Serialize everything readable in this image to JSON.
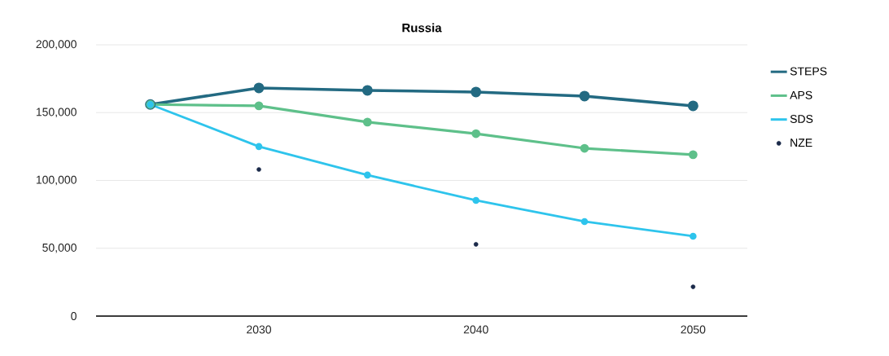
{
  "chart_data": {
    "type": "line",
    "title": "Russia",
    "x": [
      2025,
      2030,
      2035,
      2040,
      2045,
      2050
    ],
    "series": [
      {
        "name": "STEPS",
        "color": "#236a82",
        "values": [
          156000,
          168200,
          166400,
          165200,
          162200,
          155000
        ]
      },
      {
        "name": "APS",
        "color": "#5ec08a",
        "values": [
          156000,
          155000,
          143000,
          134500,
          123700,
          119000
        ]
      },
      {
        "name": "SDS",
        "color": "#2ec4ec",
        "values": [
          156000,
          125000,
          104000,
          85300,
          69700,
          58900
        ]
      },
      {
        "name": "NZE",
        "color": "#1b2a4a",
        "type": "scatter",
        "values": [
          null,
          108100,
          null,
          52900,
          null,
          21600
        ]
      }
    ],
    "xlim": [
      2022.5,
      2052.5
    ],
    "xticks": [
      2030,
      2040,
      2050
    ],
    "ylim": [
      0,
      200000
    ],
    "yticks": [
      0,
      {
        "value": 50000,
        "label": "50,000"
      },
      {
        "value": 100000,
        "label": "100,000"
      },
      {
        "value": 150000,
        "label": "150,000"
      },
      {
        "value": 200000,
        "label": "200,000"
      }
    ],
    "grid": "y",
    "legend": "right",
    "marker": "circle",
    "line_style": "solid"
  }
}
